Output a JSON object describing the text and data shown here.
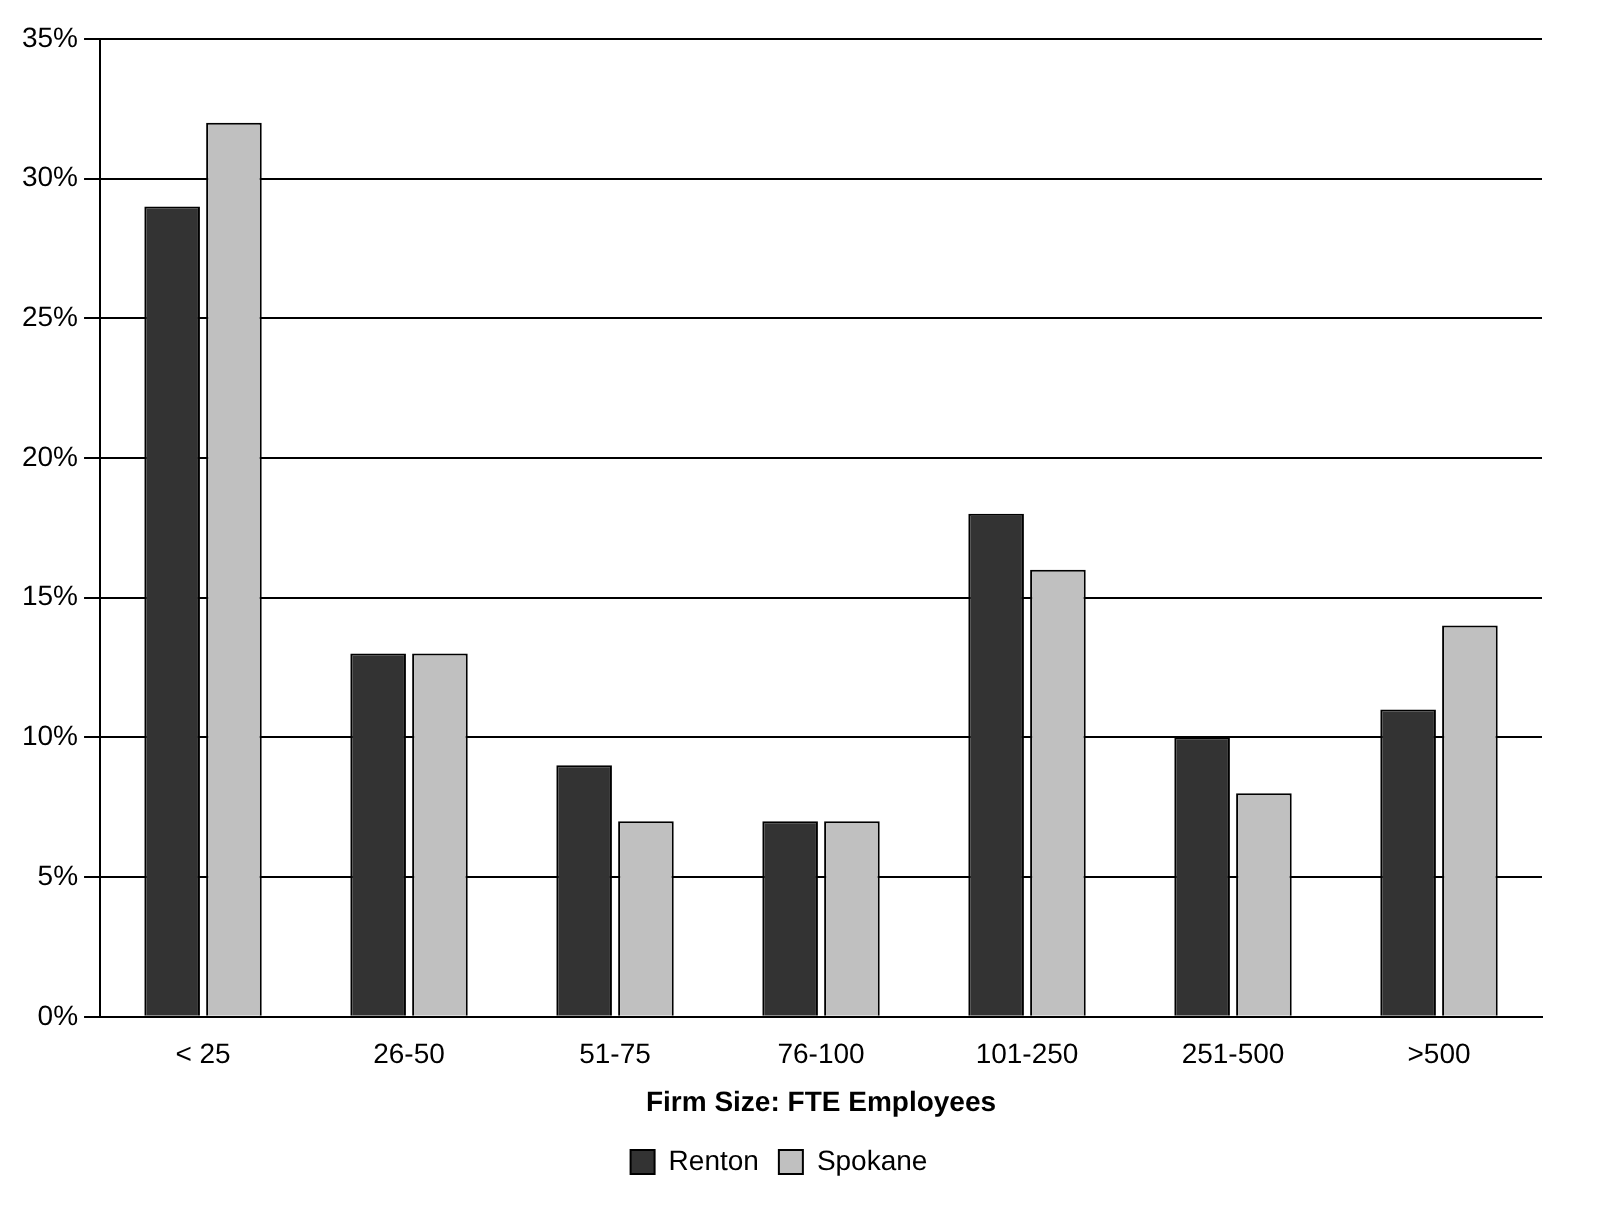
{
  "chart_data": {
    "type": "bar",
    "xlabel": "Firm Size: FTE Employees",
    "categories": [
      "< 25",
      "26-50",
      "51-75",
      "76-100",
      "101-250",
      "251-500",
      ">500"
    ],
    "series": [
      {
        "name": "Renton",
        "color": "#333333",
        "values": [
          29,
          13,
          9,
          7,
          18,
          10,
          11
        ]
      },
      {
        "name": "Spokane",
        "color": "#c0c0c0",
        "values": [
          32,
          13,
          7,
          7,
          16,
          8,
          14
        ]
      }
    ],
    "ylim": [
      0,
      35
    ],
    "yticks": [
      {
        "value": 0,
        "label": "0%"
      },
      {
        "value": 5,
        "label": "5%"
      },
      {
        "value": 10,
        "label": "10%"
      },
      {
        "value": 15,
        "label": "15%"
      },
      {
        "value": 20,
        "label": "20%"
      },
      {
        "value": 25,
        "label": "25%"
      },
      {
        "value": 30,
        "label": "30%"
      },
      {
        "value": 35,
        "label": "35%"
      }
    ],
    "grid": "y",
    "legend": "bottom"
  }
}
